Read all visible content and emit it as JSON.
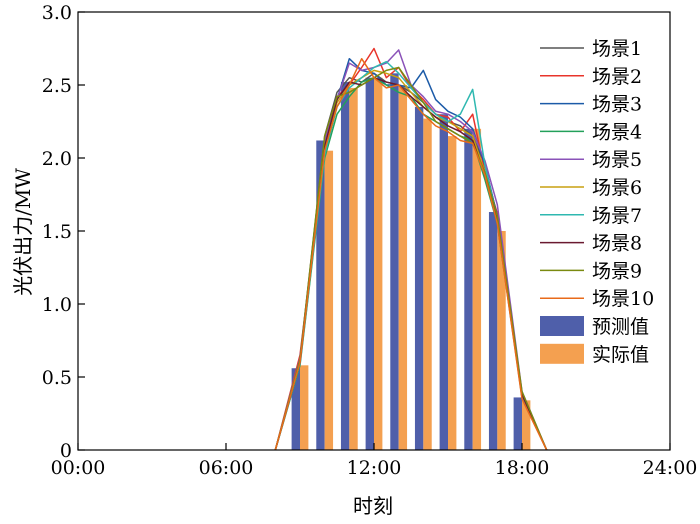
{
  "chart_data": {
    "type": "bar+line",
    "xlabel": "时刻",
    "ylabel": "光伏出力/MW",
    "xlim": [
      0,
      24
    ],
    "ylim": [
      0,
      3.0
    ],
    "x_ticks": [
      {
        "value": 0,
        "label": "00:00"
      },
      {
        "value": 6,
        "label": "06:00"
      },
      {
        "value": 12,
        "label": "12:00"
      },
      {
        "value": 18,
        "label": "18:00"
      },
      {
        "value": 24,
        "label": "24:00"
      }
    ],
    "y_ticks": [
      {
        "value": 0,
        "label": "0"
      },
      {
        "value": 0.5,
        "label": "0.5"
      },
      {
        "value": 1.0,
        "label": "1.0"
      },
      {
        "value": 1.5,
        "label": "1.5"
      },
      {
        "value": 2.0,
        "label": "2.0"
      },
      {
        "value": 2.5,
        "label": "2.5"
      },
      {
        "value": 3.0,
        "label": "3.0"
      }
    ],
    "grid": false,
    "legend_position": "right",
    "bars": {
      "hours": [
        9,
        10,
        11,
        12,
        13,
        14,
        15,
        16,
        17,
        18
      ],
      "series": [
        {
          "name": "预测值",
          "color": "#4f5faa",
          "values": [
            0.56,
            2.12,
            2.52,
            2.55,
            2.58,
            2.35,
            2.3,
            2.2,
            1.63,
            0.36
          ]
        },
        {
          "name": "实际值",
          "color": "#f4a050",
          "values": [
            0.58,
            2.05,
            2.48,
            2.55,
            2.5,
            2.27,
            2.15,
            2.2,
            1.5,
            0.34
          ]
        }
      ]
    },
    "line_x": [
      8,
      9,
      10,
      10.5,
      11,
      11.5,
      12,
      12.5,
      13,
      13.5,
      14,
      14.5,
      15,
      15.5,
      16,
      16.5,
      17,
      18,
      19
    ],
    "scenarios": [
      {
        "name": "场景1",
        "color": "#555555",
        "values": [
          0,
          0.6,
          2.15,
          2.45,
          2.55,
          2.52,
          2.58,
          2.52,
          2.5,
          2.45,
          2.38,
          2.3,
          2.25,
          2.22,
          2.15,
          1.95,
          1.6,
          0.38,
          0
        ]
      },
      {
        "name": "场景2",
        "color": "#e8342b",
        "values": [
          0,
          0.65,
          2.05,
          2.42,
          2.5,
          2.62,
          2.75,
          2.55,
          2.62,
          2.48,
          2.4,
          2.3,
          2.28,
          2.18,
          2.3,
          1.9,
          1.62,
          0.36,
          0
        ]
      },
      {
        "name": "场景3",
        "color": "#1c5ba8",
        "values": [
          0,
          0.62,
          2.1,
          2.4,
          2.68,
          2.6,
          2.58,
          2.5,
          2.5,
          2.48,
          2.6,
          2.4,
          2.32,
          2.28,
          2.2,
          1.95,
          1.6,
          0.38,
          0
        ]
      },
      {
        "name": "场景4",
        "color": "#23a05a",
        "values": [
          0,
          0.58,
          2.0,
          2.3,
          2.42,
          2.52,
          2.55,
          2.5,
          2.45,
          2.42,
          2.3,
          2.25,
          2.2,
          2.15,
          2.12,
          1.85,
          1.55,
          0.36,
          0
        ]
      },
      {
        "name": "场景5",
        "color": "#8a52b8",
        "values": [
          0,
          0.63,
          2.12,
          2.4,
          2.65,
          2.6,
          2.62,
          2.65,
          2.74,
          2.5,
          2.42,
          2.32,
          2.3,
          2.25,
          2.18,
          1.98,
          1.68,
          0.4,
          0
        ]
      },
      {
        "name": "场景6",
        "color": "#c8a010",
        "values": [
          0,
          0.61,
          2.08,
          2.38,
          2.5,
          2.55,
          2.6,
          2.58,
          2.55,
          2.45,
          2.35,
          2.28,
          2.25,
          2.2,
          2.15,
          1.9,
          1.58,
          0.37,
          0
        ]
      },
      {
        "name": "场景7",
        "color": "#2fb8b0",
        "values": [
          0,
          0.59,
          2.02,
          2.35,
          2.48,
          2.55,
          2.62,
          2.66,
          2.58,
          2.48,
          2.38,
          2.3,
          2.25,
          2.3,
          2.47,
          1.95,
          1.58,
          0.37,
          0
        ]
      },
      {
        "name": "场景8",
        "color": "#6a1a30",
        "values": [
          0,
          0.6,
          2.08,
          2.4,
          2.52,
          2.5,
          2.55,
          2.52,
          2.5,
          2.42,
          2.35,
          2.28,
          2.22,
          2.18,
          2.12,
          1.88,
          1.57,
          0.38,
          0
        ]
      },
      {
        "name": "场景9",
        "color": "#7a8a10",
        "values": [
          0,
          0.62,
          2.15,
          2.42,
          2.45,
          2.5,
          2.55,
          2.6,
          2.62,
          2.5,
          2.38,
          2.25,
          2.2,
          2.15,
          2.1,
          1.9,
          1.6,
          0.4,
          0
        ]
      },
      {
        "name": "场景10",
        "color": "#e86a1a",
        "values": [
          0,
          0.6,
          2.05,
          2.35,
          2.5,
          2.68,
          2.55,
          2.48,
          2.5,
          2.4,
          2.3,
          2.22,
          2.18,
          2.12,
          2.1,
          1.88,
          1.55,
          0.35,
          0
        ]
      }
    ]
  }
}
